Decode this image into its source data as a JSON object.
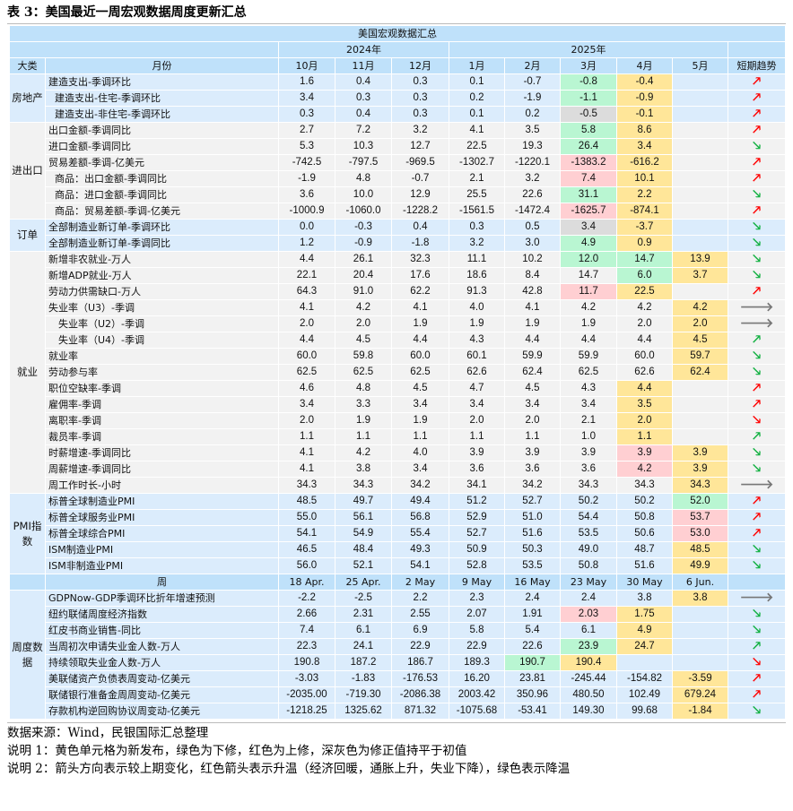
{
  "title": "表 3：美国最近一周宏观数据周度更新汇总",
  "table_title": "美国宏观数据汇总",
  "years": [
    "2024年",
    "2025年"
  ],
  "header": {
    "cat": "大类",
    "item": "月份",
    "months": [
      "10月",
      "11月",
      "12月",
      "1月",
      "2月",
      "3月",
      "4月",
      "5月"
    ],
    "trend": "短期趋势"
  },
  "week_header": {
    "item": "周",
    "weeks": [
      "18 Apr.",
      "25 Apr.",
      "2 May",
      "9 May",
      "16 May",
      "23 May",
      "30 May",
      "6 Jun."
    ]
  },
  "colors": {
    "new_release": "#ffe699",
    "revised_down": "#b9f6d2",
    "revised_up": "#ffcfd2",
    "unchanged": "#dcdcdc",
    "warming_arrow": "#ff0000",
    "cooling_arrow": "#10b040"
  },
  "groups": [
    {
      "name": "房地产",
      "bg": "b",
      "rows": [
        {
          "label": "建造支出-季调环比",
          "indent": 0,
          "values": [
            "1.6",
            "0.4",
            "0.3",
            "0.1",
            "-0.7",
            "-0.8",
            "-0.4",
            ""
          ],
          "marks": [
            "",
            "",
            "",
            "",
            "",
            "gr",
            "y",
            ""
          ],
          "trend": "up-red"
        },
        {
          "label": "建造支出-住宅-季调环比",
          "indent": 1,
          "values": [
            "3.4",
            "0.3",
            "0.3",
            "0.2",
            "-1.9",
            "-1.1",
            "-0.9",
            ""
          ],
          "marks": [
            "",
            "",
            "",
            "",
            "",
            "gr",
            "y",
            ""
          ],
          "trend": "up-red"
        },
        {
          "label": "建造支出-非住宅-季调环比",
          "indent": 1,
          "values": [
            "0.3",
            "0.4",
            "0.3",
            "0.1",
            "0.2",
            "-0.5",
            "-0.1",
            ""
          ],
          "marks": [
            "",
            "",
            "",
            "",
            "",
            "d",
            "y",
            ""
          ],
          "trend": "up-red"
        }
      ]
    },
    {
      "name": "进出口",
      "bg": "g",
      "rows": [
        {
          "label": "出口金额-季调同比",
          "indent": 0,
          "values": [
            "2.7",
            "7.2",
            "3.2",
            "4.1",
            "3.5",
            "5.8",
            "8.6",
            ""
          ],
          "marks": [
            "",
            "",
            "",
            "",
            "",
            "gr",
            "y",
            ""
          ],
          "trend": "up-red"
        },
        {
          "label": "进口金额-季调同比",
          "indent": 0,
          "values": [
            "5.3",
            "10.3",
            "12.7",
            "22.5",
            "19.3",
            "26.4",
            "3.4",
            ""
          ],
          "marks": [
            "",
            "",
            "",
            "",
            "",
            "gr",
            "y",
            ""
          ],
          "trend": "down-green"
        },
        {
          "label": "贸易差额-季调-亿美元",
          "indent": 0,
          "values": [
            "-742.5",
            "-797.5",
            "-969.5",
            "-1302.7",
            "-1220.1",
            "-1383.2",
            "-616.2",
            ""
          ],
          "marks": [
            "",
            "",
            "",
            "",
            "",
            "r",
            "y",
            ""
          ],
          "trend": "up-red"
        },
        {
          "label": "商品：出口金额-季调同比",
          "indent": 1,
          "values": [
            "-1.9",
            "4.8",
            "-0.7",
            "2.1",
            "3.2",
            "7.4",
            "10.1",
            ""
          ],
          "marks": [
            "",
            "",
            "",
            "",
            "",
            "r",
            "y",
            ""
          ],
          "trend": "up-red"
        },
        {
          "label": "商品：进口金额-季调同比",
          "indent": 1,
          "values": [
            "3.6",
            "10.0",
            "12.9",
            "25.5",
            "22.6",
            "31.1",
            "2.2",
            ""
          ],
          "marks": [
            "",
            "",
            "",
            "",
            "",
            "gr",
            "y",
            ""
          ],
          "trend": "down-green"
        },
        {
          "label": "商品：贸易差额-季调-亿美元",
          "indent": 1,
          "values": [
            "-1000.9",
            "-1060.0",
            "-1228.2",
            "-1561.5",
            "-1472.4",
            "-1625.7",
            "-874.1",
            ""
          ],
          "marks": [
            "",
            "",
            "",
            "",
            "",
            "r",
            "y",
            ""
          ],
          "trend": "up-red"
        }
      ]
    },
    {
      "name": "订单",
      "bg": "b",
      "rows": [
        {
          "label": "全部制造业新订单-季调环比",
          "indent": 0,
          "values": [
            "0.0",
            "-0.3",
            "0.4",
            "0.3",
            "0.5",
            "3.4",
            "-3.7",
            ""
          ],
          "marks": [
            "",
            "",
            "",
            "",
            "",
            "d",
            "y",
            ""
          ],
          "trend": "down-green"
        },
        {
          "label": "全部制造业新订单-季调同比",
          "indent": 0,
          "values": [
            "1.2",
            "-0.9",
            "-1.8",
            "3.2",
            "3.0",
            "4.9",
            "0.9",
            ""
          ],
          "marks": [
            "",
            "",
            "",
            "",
            "",
            "gr",
            "y",
            ""
          ],
          "trend": "down-green"
        }
      ]
    },
    {
      "name": "就业",
      "bg": "g",
      "rows": [
        {
          "label": "新增非农就业-万人",
          "indent": 0,
          "values": [
            "4.4",
            "26.1",
            "32.3",
            "11.1",
            "10.2",
            "12.0",
            "14.7",
            "13.9"
          ],
          "marks": [
            "",
            "",
            "",
            "",
            "",
            "gr",
            "gr",
            "y"
          ],
          "trend": "down-green"
        },
        {
          "label": "新增ADP就业-万人",
          "indent": 0,
          "values": [
            "22.1",
            "20.4",
            "17.6",
            "18.6",
            "8.4",
            "14.7",
            "6.0",
            "3.7"
          ],
          "marks": [
            "",
            "",
            "",
            "",
            "",
            "",
            "gr",
            "y"
          ],
          "trend": "down-green"
        },
        {
          "label": "劳动力供需缺口-万人",
          "indent": 0,
          "values": [
            "64.3",
            "91.0",
            "62.2",
            "91.3",
            "42.8",
            "11.7",
            "22.5",
            ""
          ],
          "marks": [
            "",
            "",
            "",
            "",
            "",
            "r",
            "y",
            ""
          ],
          "trend": "up-red"
        },
        {
          "label": "失业率（U3）-季调",
          "indent": 0,
          "values": [
            "4.1",
            "4.2",
            "4.1",
            "4.0",
            "4.1",
            "4.2",
            "4.2",
            "4.2"
          ],
          "marks": [
            "",
            "",
            "",
            "",
            "",
            "",
            "",
            "y"
          ],
          "trend": "flat"
        },
        {
          "label": "失业率（U2）-季调",
          "indent": 2,
          "values": [
            "2.0",
            "2.0",
            "1.9",
            "1.9",
            "1.9",
            "1.9",
            "2.0",
            "2.0"
          ],
          "marks": [
            "",
            "",
            "",
            "",
            "",
            "",
            "",
            "y"
          ],
          "trend": "flat"
        },
        {
          "label": "失业率（U4）-季调",
          "indent": 2,
          "values": [
            "4.4",
            "4.5",
            "4.4",
            "4.3",
            "4.4",
            "4.4",
            "4.4",
            "4.5"
          ],
          "marks": [
            "",
            "",
            "",
            "",
            "",
            "",
            "",
            "y"
          ],
          "trend": "up-green"
        },
        {
          "label": "就业率",
          "indent": 0,
          "values": [
            "60.0",
            "59.8",
            "60.0",
            "60.1",
            "59.9",
            "59.9",
            "60.0",
            "59.7"
          ],
          "marks": [
            "",
            "",
            "",
            "",
            "",
            "",
            "",
            "y"
          ],
          "trend": "down-green"
        },
        {
          "label": "劳动参与率",
          "indent": 0,
          "values": [
            "62.5",
            "62.5",
            "62.5",
            "62.6",
            "62.4",
            "62.5",
            "62.6",
            "62.4"
          ],
          "marks": [
            "",
            "",
            "",
            "",
            "",
            "",
            "",
            "y"
          ],
          "trend": "down-green"
        },
        {
          "label": "职位空缺率-季调",
          "indent": 0,
          "values": [
            "4.6",
            "4.8",
            "4.5",
            "4.7",
            "4.5",
            "4.3",
            "4.4",
            ""
          ],
          "marks": [
            "",
            "",
            "",
            "",
            "",
            "",
            "y",
            ""
          ],
          "trend": "up-red"
        },
        {
          "label": "雇佣率-季调",
          "indent": 0,
          "values": [
            "3.4",
            "3.3",
            "3.4",
            "3.4",
            "3.4",
            "3.4",
            "3.5",
            ""
          ],
          "marks": [
            "",
            "",
            "",
            "",
            "",
            "",
            "y",
            ""
          ],
          "trend": "up-red"
        },
        {
          "label": "离职率-季调",
          "indent": 0,
          "values": [
            "2.0",
            "1.9",
            "1.9",
            "2.0",
            "2.0",
            "2.1",
            "2.0",
            ""
          ],
          "marks": [
            "",
            "",
            "",
            "",
            "",
            "",
            "y",
            ""
          ],
          "trend": "down-red"
        },
        {
          "label": "裁员率-季调",
          "indent": 0,
          "values": [
            "1.1",
            "1.1",
            "1.1",
            "1.1",
            "1.1",
            "1.0",
            "1.1",
            ""
          ],
          "marks": [
            "",
            "",
            "",
            "",
            "",
            "",
            "y",
            ""
          ],
          "trend": "up-green"
        },
        {
          "label": "时薪增速-季调同比",
          "indent": 0,
          "values": [
            "4.1",
            "4.2",
            "4.0",
            "3.9",
            "3.9",
            "3.9",
            "3.9",
            "3.9"
          ],
          "marks": [
            "",
            "",
            "",
            "",
            "",
            "",
            "r",
            "y"
          ],
          "trend": "down-green"
        },
        {
          "label": "周薪增速-季调同比",
          "indent": 0,
          "values": [
            "4.1",
            "3.8",
            "3.4",
            "3.6",
            "3.6",
            "3.6",
            "4.2",
            "3.9"
          ],
          "marks": [
            "",
            "",
            "",
            "",
            "",
            "",
            "r",
            "y"
          ],
          "trend": "down-green"
        },
        {
          "label": "周工作时长-小时",
          "indent": 0,
          "values": [
            "34.3",
            "34.3",
            "34.2",
            "34.1",
            "34.2",
            "34.3",
            "34.3",
            "34.3"
          ],
          "marks": [
            "",
            "",
            "",
            "",
            "",
            "",
            "",
            "y"
          ],
          "trend": "flat"
        }
      ]
    },
    {
      "name": "PMI指数",
      "bg": "b",
      "rows": [
        {
          "label": "标普全球制造业PMI",
          "indent": 0,
          "values": [
            "48.5",
            "49.7",
            "49.4",
            "51.2",
            "52.7",
            "50.2",
            "50.2",
            "52.0"
          ],
          "marks": [
            "",
            "",
            "",
            "",
            "",
            "",
            "",
            "gr"
          ],
          "trend": "up-red"
        },
        {
          "label": "标普全球服务业PMI",
          "indent": 0,
          "values": [
            "55.0",
            "56.1",
            "56.8",
            "52.9",
            "51.0",
            "54.4",
            "50.8",
            "53.7"
          ],
          "marks": [
            "",
            "",
            "",
            "",
            "",
            "",
            "",
            "r"
          ],
          "trend": "up-red"
        },
        {
          "label": "标普全球综合PMI",
          "indent": 0,
          "values": [
            "54.1",
            "54.9",
            "55.4",
            "52.7",
            "51.6",
            "53.5",
            "50.6",
            "53.0"
          ],
          "marks": [
            "",
            "",
            "",
            "",
            "",
            "",
            "",
            "r"
          ],
          "trend": "up-red"
        },
        {
          "label": "ISM制造业PMI",
          "indent": 0,
          "values": [
            "46.5",
            "48.4",
            "49.3",
            "50.9",
            "50.3",
            "49.0",
            "48.7",
            "48.5"
          ],
          "marks": [
            "",
            "",
            "",
            "",
            "",
            "",
            "",
            "y"
          ],
          "trend": "down-green"
        },
        {
          "label": "ISM非制造业PMI",
          "indent": 0,
          "values": [
            "56.0",
            "52.1",
            "54.1",
            "52.8",
            "53.5",
            "50.8",
            "51.6",
            "49.9"
          ],
          "marks": [
            "",
            "",
            "",
            "",
            "",
            "",
            "",
            "y"
          ],
          "trend": "down-green"
        }
      ]
    }
  ],
  "weekly": {
    "name": "周度数据",
    "rows": [
      {
        "label": "GDPNow-GDP季调环比折年增速预测",
        "indent": 0,
        "values": [
          "-2.2",
          "-2.5",
          "2.2",
          "2.3",
          "2.4",
          "2.4",
          "3.8",
          "3.8"
        ],
        "marks": [
          "",
          "",
          "",
          "",
          "",
          "",
          "",
          "y"
        ],
        "trend": "flat"
      },
      {
        "label": "纽约联储周度经济指数",
        "indent": 0,
        "values": [
          "2.66",
          "2.31",
          "2.55",
          "2.07",
          "1.91",
          "2.03",
          "1.75",
          ""
        ],
        "marks": [
          "",
          "",
          "",
          "",
          "",
          "r",
          "y",
          ""
        ],
        "trend": "down-green"
      },
      {
        "label": "红皮书商业销售-同比",
        "indent": 0,
        "values": [
          "7.4",
          "6.1",
          "6.9",
          "5.8",
          "5.4",
          "6.1",
          "4.9",
          ""
        ],
        "marks": [
          "",
          "",
          "",
          "",
          "",
          "",
          "y",
          ""
        ],
        "trend": "down-green"
      },
      {
        "label": "当周初次申请失业金人数-万人",
        "indent": 0,
        "values": [
          "22.3",
          "24.1",
          "22.9",
          "22.9",
          "22.6",
          "23.9",
          "24.7",
          ""
        ],
        "marks": [
          "",
          "",
          "",
          "",
          "",
          "gr",
          "y",
          ""
        ],
        "trend": "up-green"
      },
      {
        "label": "持续领取失业金人数-万人",
        "indent": 0,
        "values": [
          "190.8",
          "187.2",
          "186.7",
          "189.3",
          "190.7",
          "190.4",
          "",
          ""
        ],
        "marks": [
          "",
          "",
          "",
          "",
          "gr",
          "y",
          "",
          ""
        ],
        "trend": "down-red"
      },
      {
        "label": "美联储资产负债表周变动-亿美元",
        "indent": 0,
        "values": [
          "-3.03",
          "-1.83",
          "-176.53",
          "16.20",
          "23.81",
          "-245.44",
          "-154.82",
          "-3.59"
        ],
        "marks": [
          "",
          "",
          "",
          "",
          "",
          "",
          "",
          "y"
        ],
        "trend": "up-red"
      },
      {
        "label": "联储银行准备金周周变动-亿美元",
        "indent": 0,
        "values": [
          "-2035.00",
          "-719.30",
          "-2086.38",
          "2003.42",
          "350.96",
          "480.50",
          "102.49",
          "679.24"
        ],
        "marks": [
          "",
          "",
          "",
          "",
          "",
          "",
          "",
          "y"
        ],
        "trend": "up-red"
      },
      {
        "label": "存款机构逆回购协议周变动-亿美元",
        "indent": 0,
        "values": [
          "-1218.25",
          "1325.62",
          "871.32",
          "-1075.68",
          "-53.41",
          "149.30",
          "99.68",
          "-1.84"
        ],
        "marks": [
          "",
          "",
          "",
          "",
          "",
          "",
          "",
          "y"
        ],
        "trend": "down-green"
      }
    ]
  },
  "arrows": {
    "up-red": "🡕",
    "down-green": "🡖",
    "up-green": "🡕",
    "down-red": "🡖",
    "flat": "🡒"
  },
  "notes": [
    "数据来源：Wind，民银国际汇总整理",
    "说明 1：黄色单元格为新发布，绿色为下修，红色为上修，深灰色为修正值持平于初值",
    "说明 2：箭头方向表示较上期变化，红色箭头表示升温（经济回暖，通胀上升，失业下降），绿色表示降温"
  ]
}
